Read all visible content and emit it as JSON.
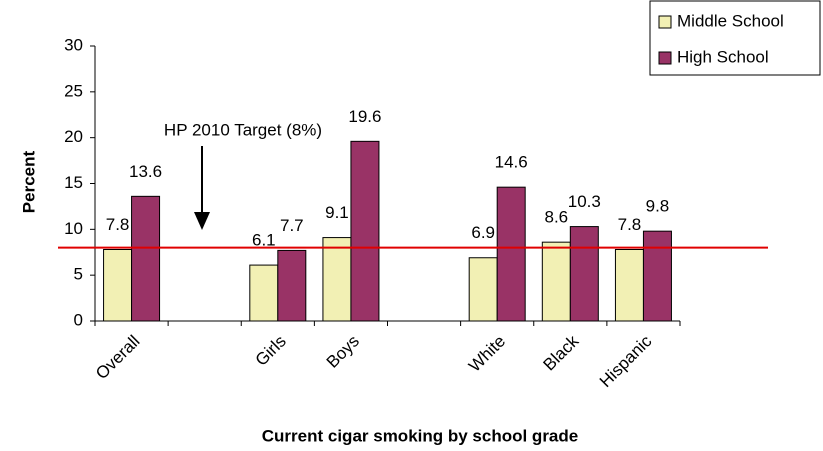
{
  "chart_data": {
    "type": "bar",
    "x_label": "Current cigar smoking by school grade",
    "y_label": "Percent",
    "categories": [
      "Overall",
      null,
      "Girls",
      "Boys",
      null,
      "White",
      "Black",
      "Hispanic"
    ],
    "series": [
      {
        "name": "Middle School",
        "color": "#f2f0b4",
        "values": [
          7.8,
          null,
          6.1,
          9.1,
          null,
          6.9,
          8.6,
          7.8
        ]
      },
      {
        "name": "High School",
        "color": "#993366",
        "values": [
          13.6,
          null,
          7.7,
          19.6,
          null,
          14.6,
          10.3,
          9.8
        ]
      }
    ],
    "ylim": [
      0,
      30
    ],
    "yticks": [
      0,
      5,
      10,
      15,
      20,
      25,
      30
    ],
    "reference_line": {
      "value": 8,
      "color": "#e00000",
      "label": "HP 2010 Target (8%)"
    },
    "legend": "top-right"
  }
}
